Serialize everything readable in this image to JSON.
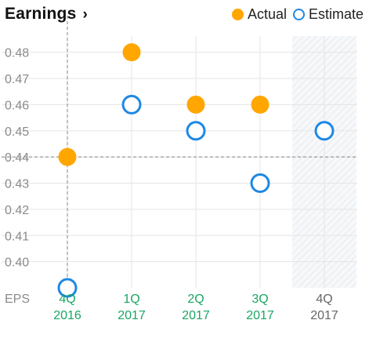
{
  "header": {
    "title": "Earnings",
    "chevron": "›"
  },
  "legend": {
    "actual_label": "Actual",
    "estimate_label": "Estimate"
  },
  "colors": {
    "actual": "#ffa600",
    "estimate": "#1e88e5",
    "reported_label": "#1aa661",
    "future_label": "#666666",
    "axis_text": "#8a8a8a",
    "grid": "#e5e5e5"
  },
  "chart_data": {
    "type": "scatter",
    "title": "Earnings",
    "row_label": "EPS",
    "ylim": [
      0.39,
      0.485
    ],
    "yticks": [
      0.48,
      0.47,
      0.46,
      0.45,
      0.44,
      0.43,
      0.42,
      0.41,
      0.4
    ],
    "categories": [
      {
        "q": "4Q",
        "y": "2016",
        "reported": true
      },
      {
        "q": "1Q",
        "y": "2017",
        "reported": true
      },
      {
        "q": "2Q",
        "y": "2017",
        "reported": true
      },
      {
        "q": "3Q",
        "y": "2017",
        "reported": true
      },
      {
        "q": "4Q",
        "y": "2017",
        "reported": false
      }
    ],
    "series": [
      {
        "name": "Actual",
        "values": [
          0.44,
          0.48,
          0.46,
          0.46,
          null
        ]
      },
      {
        "name": "Estimate",
        "values": [
          0.39,
          0.46,
          0.45,
          0.43,
          0.45
        ]
      }
    ],
    "crosshair": {
      "category_index": 0,
      "value": 0.44
    },
    "grid": true,
    "legend_position": "top-right",
    "future_region": "shaded"
  }
}
